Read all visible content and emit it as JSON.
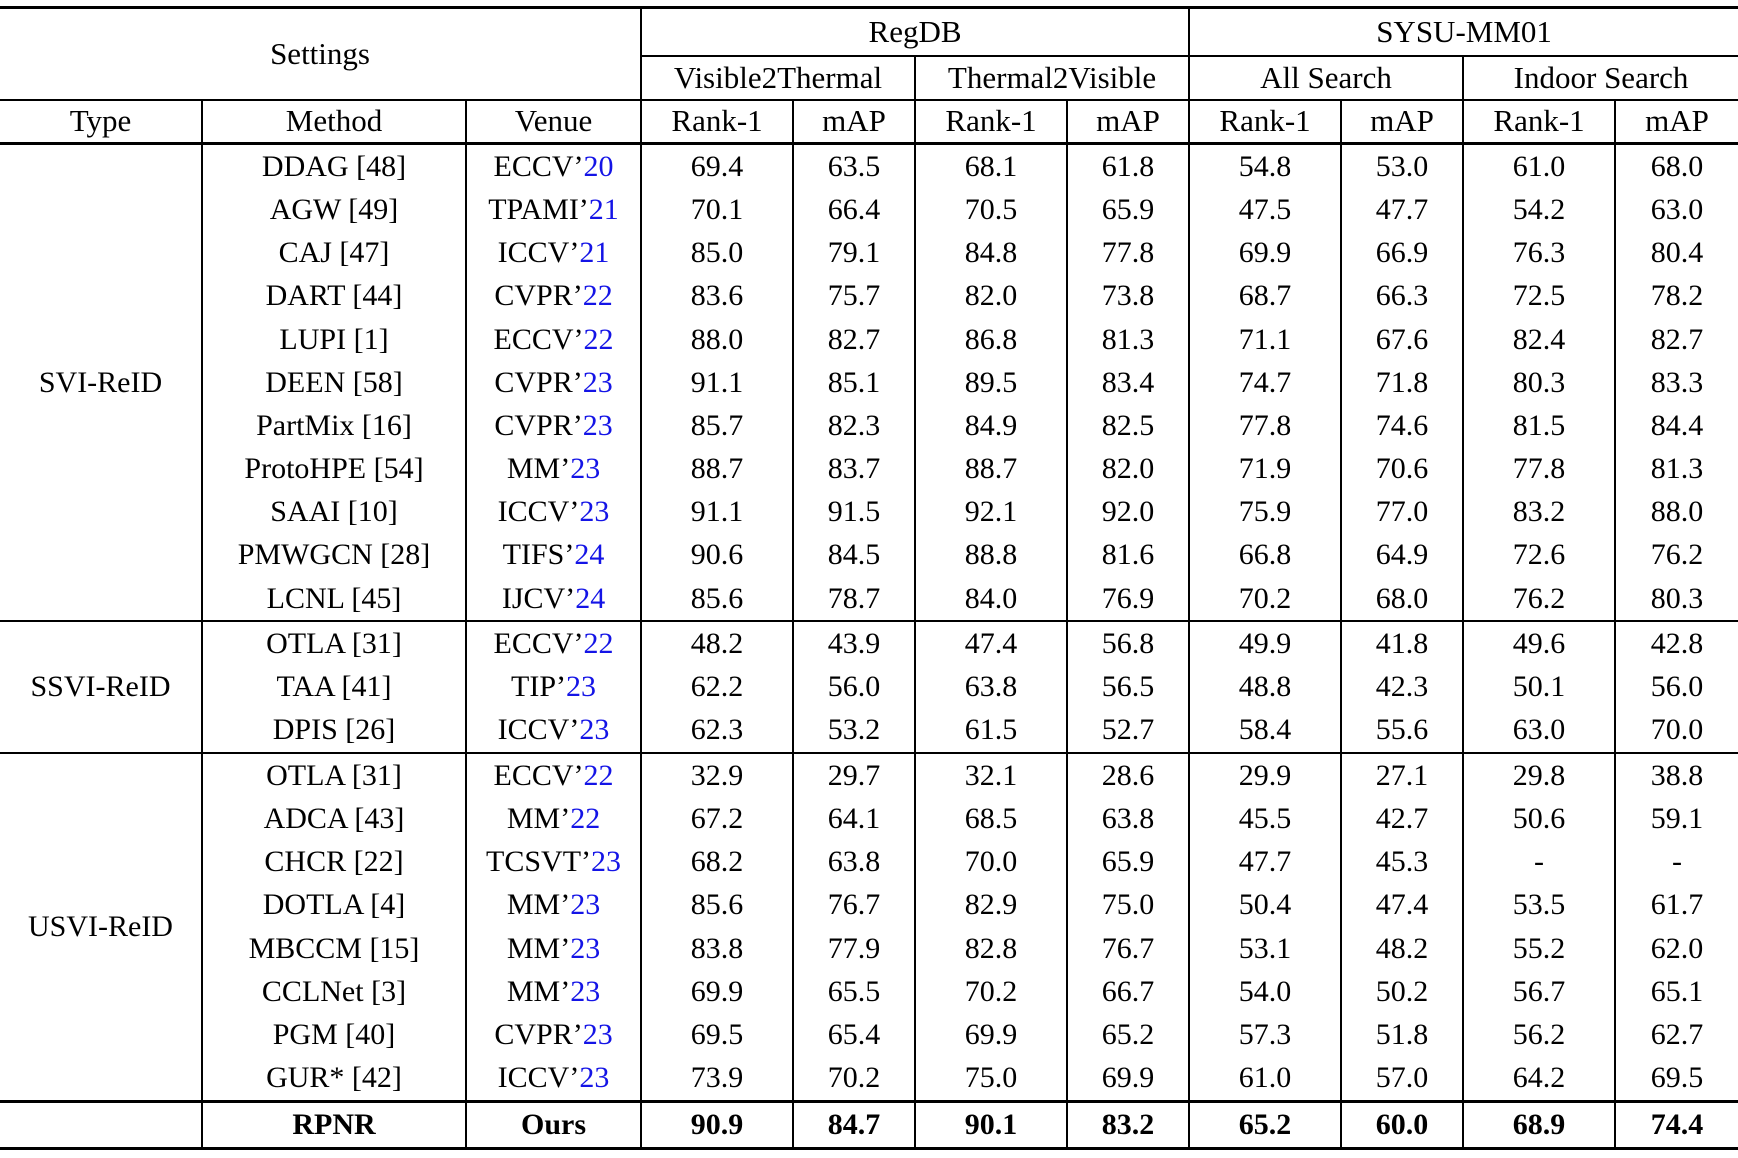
{
  "colors": {
    "venue_year_blue": "#1414e6",
    "text": "#000000"
  },
  "header": {
    "settings": "Settings",
    "group1": "RegDB",
    "group2": "SYSU-MM01",
    "sub1": "Visible2Thermal",
    "sub2": "Thermal2Visible",
    "sub3": "All Search",
    "sub4": "Indoor Search",
    "columns": [
      "Type",
      "Method",
      "Venue",
      "Rank-1",
      "mAP",
      "Rank-1",
      "mAP",
      "Rank-1",
      "mAP",
      "Rank-1",
      "mAP"
    ]
  },
  "sections": [
    {
      "type": "SVI-ReID",
      "rows": [
        {
          "method": "DDAG [48]",
          "venue_pre": "ECCV’",
          "venue_year": "20",
          "values": [
            "69.4",
            "63.5",
            "68.1",
            "61.8",
            "54.8",
            "53.0",
            "61.0",
            "68.0"
          ]
        },
        {
          "method": "AGW [49]",
          "venue_pre": "TPAMI’",
          "venue_year": "21",
          "values": [
            "70.1",
            "66.4",
            "70.5",
            "65.9",
            "47.5",
            "47.7",
            "54.2",
            "63.0"
          ]
        },
        {
          "method": "CAJ [47]",
          "venue_pre": "ICCV’",
          "venue_year": "21",
          "values": [
            "85.0",
            "79.1",
            "84.8",
            "77.8",
            "69.9",
            "66.9",
            "76.3",
            "80.4"
          ]
        },
        {
          "method": "DART [44]",
          "venue_pre": "CVPR’",
          "venue_year": "22",
          "values": [
            "83.6",
            "75.7",
            "82.0",
            "73.8",
            "68.7",
            "66.3",
            "72.5",
            "78.2"
          ]
        },
        {
          "method": "LUPI [1]",
          "venue_pre": "ECCV’",
          "venue_year": "22",
          "values": [
            "88.0",
            "82.7",
            "86.8",
            "81.3",
            "71.1",
            "67.6",
            "82.4",
            "82.7"
          ]
        },
        {
          "method": "DEEN [58]",
          "venue_pre": "CVPR’",
          "venue_year": "23",
          "values": [
            "91.1",
            "85.1",
            "89.5",
            "83.4",
            "74.7",
            "71.8",
            "80.3",
            "83.3"
          ]
        },
        {
          "method": "PartMix [16]",
          "venue_pre": "CVPR’",
          "venue_year": "23",
          "values": [
            "85.7",
            "82.3",
            "84.9",
            "82.5",
            "77.8",
            "74.6",
            "81.5",
            "84.4"
          ]
        },
        {
          "method": "ProtoHPE [54]",
          "venue_pre": "MM’",
          "venue_year": "23",
          "values": [
            "88.7",
            "83.7",
            "88.7",
            "82.0",
            "71.9",
            "70.6",
            "77.8",
            "81.3"
          ]
        },
        {
          "method": "SAAI [10]",
          "venue_pre": "ICCV’",
          "venue_year": "23",
          "values": [
            "91.1",
            "91.5",
            "92.1",
            "92.0",
            "75.9",
            "77.0",
            "83.2",
            "88.0"
          ]
        },
        {
          "method": "PMWGCN [28]",
          "venue_pre": "TIFS’",
          "venue_year": "24",
          "values": [
            "90.6",
            "84.5",
            "88.8",
            "81.6",
            "66.8",
            "64.9",
            "72.6",
            "76.2"
          ]
        },
        {
          "method": "LCNL [45]",
          "venue_pre": "IJCV’",
          "venue_year": "24",
          "values": [
            "85.6",
            "78.7",
            "84.0",
            "76.9",
            "70.2",
            "68.0",
            "76.2",
            "80.3"
          ]
        }
      ]
    },
    {
      "type": "SSVI-ReID",
      "rows": [
        {
          "method": "OTLA [31]",
          "venue_pre": "ECCV’",
          "venue_year": "22",
          "values": [
            "48.2",
            "43.9",
            "47.4",
            "56.8",
            "49.9",
            "41.8",
            "49.6",
            "42.8"
          ]
        },
        {
          "method": "TAA [41]",
          "venue_pre": "TIP’",
          "venue_year": "23",
          "values": [
            "62.2",
            "56.0",
            "63.8",
            "56.5",
            "48.8",
            "42.3",
            "50.1",
            "56.0"
          ]
        },
        {
          "method": "DPIS [26]",
          "venue_pre": "ICCV’",
          "venue_year": "23",
          "values": [
            "62.3",
            "53.2",
            "61.5",
            "52.7",
            "58.4",
            "55.6",
            "63.0",
            "70.0"
          ]
        }
      ]
    },
    {
      "type": "USVI-ReID",
      "rows": [
        {
          "method": "OTLA [31]",
          "venue_pre": "ECCV’",
          "venue_year": "22",
          "values": [
            "32.9",
            "29.7",
            "32.1",
            "28.6",
            "29.9",
            "27.1",
            "29.8",
            "38.8"
          ]
        },
        {
          "method": "ADCA [43]",
          "venue_pre": "MM’",
          "venue_year": "22",
          "values": [
            "67.2",
            "64.1",
            "68.5",
            "63.8",
            "45.5",
            "42.7",
            "50.6",
            "59.1"
          ]
        },
        {
          "method": "CHCR [22]",
          "venue_pre": "TCSVT’",
          "venue_year": "23",
          "values": [
            "68.2",
            "63.8",
            "70.0",
            "65.9",
            "47.7",
            "45.3",
            "-",
            "-"
          ]
        },
        {
          "method": "DOTLA [4]",
          "venue_pre": "MM’",
          "venue_year": "23",
          "values": [
            "85.6",
            "76.7",
            "82.9",
            "75.0",
            "50.4",
            "47.4",
            "53.5",
            "61.7"
          ]
        },
        {
          "method": "MBCCM [15]",
          "venue_pre": "MM’",
          "venue_year": "23",
          "values": [
            "83.8",
            "77.9",
            "82.8",
            "76.7",
            "53.1",
            "48.2",
            "55.2",
            "62.0"
          ]
        },
        {
          "method": "CCLNet [3]",
          "venue_pre": "MM’",
          "venue_year": "23",
          "values": [
            "69.9",
            "65.5",
            "70.2",
            "66.7",
            "54.0",
            "50.2",
            "56.7",
            "65.1"
          ]
        },
        {
          "method": "PGM [40]",
          "venue_pre": "CVPR’",
          "venue_year": "23",
          "values": [
            "69.5",
            "65.4",
            "69.9",
            "65.2",
            "57.3",
            "51.8",
            "56.2",
            "62.7"
          ]
        },
        {
          "method": "GUR* [42]",
          "venue_pre": "ICCV’",
          "venue_year": "23",
          "values": [
            "73.9",
            "70.2",
            "75.0",
            "69.9",
            "61.0",
            "57.0",
            "64.2",
            "69.5"
          ]
        }
      ]
    }
  ],
  "final_row": {
    "type": "",
    "method": "RPNR",
    "venue": "Ours",
    "values": [
      "90.9",
      "84.7",
      "90.1",
      "83.2",
      "65.2",
      "60.0",
      "68.9",
      "74.4"
    ]
  }
}
